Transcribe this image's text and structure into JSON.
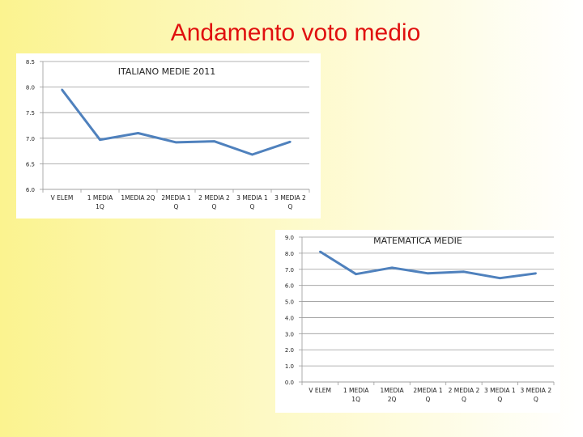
{
  "slide": {
    "title": "Andamento voto medio"
  },
  "chart_data": [
    {
      "type": "line",
      "title": "ITALIANO MEDIE 2011",
      "categories": [
        [
          "V ELEM"
        ],
        [
          "1 MEDIA",
          "1Q"
        ],
        [
          "1MEDIA 2Q"
        ],
        [
          "2MEDIA 1",
          "Q"
        ],
        [
          "2 MEDIA 2",
          "Q"
        ],
        [
          "3 MEDIA 1",
          "Q"
        ],
        [
          "3 MEDIA 2",
          "Q"
        ]
      ],
      "series": [
        {
          "values": [
            7.95,
            6.97,
            7.1,
            6.92,
            6.94,
            6.68,
            6.93
          ]
        }
      ],
      "ylim": [
        6.0,
        8.5
      ],
      "yticks": [
        "6.0",
        "6.5",
        "7.0",
        "7.5",
        "8.0",
        "8.5"
      ],
      "grid": true,
      "line_color": "#4f81bd"
    },
    {
      "type": "line",
      "title": "MATEMATICA MEDIE",
      "categories": [
        [
          "V ELEM"
        ],
        [
          "1 MEDIA",
          "1Q"
        ],
        [
          "1MEDIA",
          "2Q"
        ],
        [
          "2MEDIA 1",
          "Q"
        ],
        [
          "2 MEDIA 2",
          "Q"
        ],
        [
          "3 MEDIA 1",
          "Q"
        ],
        [
          "3 MEDIA 2",
          "Q"
        ]
      ],
      "series": [
        {
          "values": [
            8.1,
            6.7,
            7.1,
            6.75,
            6.85,
            6.45,
            6.75
          ]
        }
      ],
      "ylim": [
        0.0,
        9.0
      ],
      "yticks": [
        "0.0",
        "1.0",
        "2.0",
        "3.0",
        "4.0",
        "5.0",
        "6.0",
        "7.0",
        "8.0",
        "9.0"
      ],
      "grid": true,
      "line_color": "#4f81bd"
    }
  ]
}
